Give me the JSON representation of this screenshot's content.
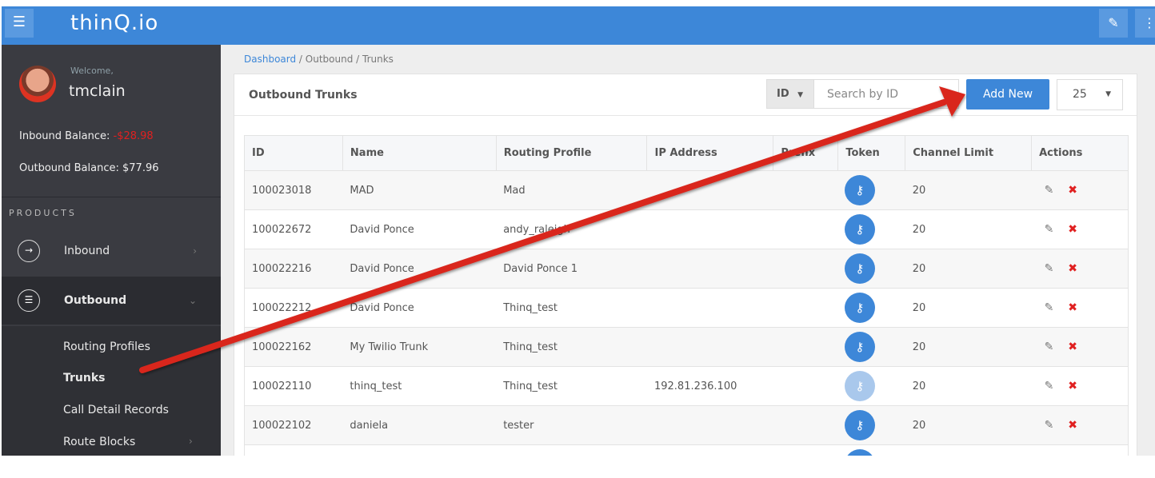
{
  "app": {
    "logo": "thinQ.io"
  },
  "user": {
    "welcome": "Welcome,",
    "name": "tmclain",
    "inbound_label": "Inbound Balance:",
    "inbound_value": "-$28.98",
    "outbound_label": "Outbound Balance:",
    "outbound_value": "$77.96"
  },
  "sidebar": {
    "section": "PRODUCTS",
    "items": [
      {
        "label": "Inbound"
      },
      {
        "label": "Outbound"
      }
    ],
    "sub": [
      {
        "label": "Routing Profiles"
      },
      {
        "label": "Trunks"
      },
      {
        "label": "Call Detail Records"
      },
      {
        "label": "Route Blocks"
      }
    ]
  },
  "breadcrumb": [
    "Dashboard",
    "Outbound",
    "Trunks"
  ],
  "panel": {
    "title": "Outbound Trunks",
    "filter": "ID",
    "search_placeholder": "Search by ID",
    "add": "Add New",
    "per_page": "25"
  },
  "table": {
    "headers": [
      "ID",
      "Name",
      "Routing Profile",
      "IP Address",
      "Prefix",
      "Token",
      "Channel Limit",
      "Actions"
    ],
    "rows": [
      [
        "100023018",
        "MAD",
        "Mad",
        "",
        "",
        "",
        "20"
      ],
      [
        "100022672",
        "David Ponce",
        "andy_raleigh",
        "",
        "",
        "",
        "20"
      ],
      [
        "100022216",
        "David Ponce",
        "David Ponce 1",
        "",
        "",
        "",
        "20"
      ],
      [
        "100022212",
        "David Ponce",
        "Thinq_test",
        "",
        "",
        "",
        "20"
      ],
      [
        "100022162",
        "My Twilio Trunk",
        "Thinq_test",
        "",
        "",
        "",
        "20"
      ],
      [
        "100022110",
        "thinq_test",
        "Thinq_test",
        "192.81.236.100",
        "",
        "",
        "20"
      ],
      [
        "100022102",
        "daniela",
        "tester",
        "",
        "",
        "",
        "20"
      ],
      [
        "",
        "",
        "",
        "",
        "",
        "",
        ""
      ]
    ]
  },
  "colors": {
    "brand": "#3d87d8",
    "sidebar": "#3a3b41",
    "danger": "#e02020",
    "annotation_arrow": "#d9261c"
  }
}
